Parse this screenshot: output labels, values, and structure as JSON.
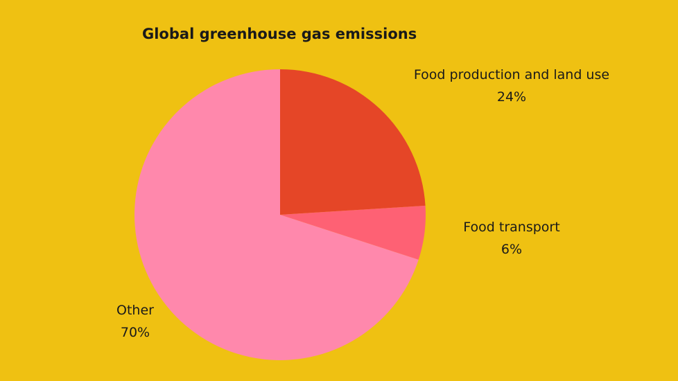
{
  "chart_data": {
    "type": "pie",
    "title": "Global greenhouse gas emissions",
    "slices": [
      {
        "label": "Food production and land use",
        "value": 24,
        "value_label": "24%",
        "color": "#e54627"
      },
      {
        "label": "Food transport",
        "value": 6,
        "value_label": "6%",
        "color": "#fe6174"
      },
      {
        "label": "Other",
        "value": 70,
        "value_label": "70%",
        "color": "#ff88ac"
      }
    ],
    "start_angle": "12 o'clock",
    "direction": "clockwise",
    "background": "#efc112",
    "legend": "none"
  }
}
